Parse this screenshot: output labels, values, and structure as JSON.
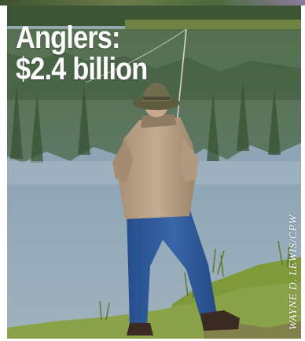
{
  "headline": {
    "line1": "Anglers:",
    "line2": "$2.4 billion"
  },
  "photo_credit": "WAYNE D. LEWIS/CPW",
  "colors": {
    "headline_text": "#ffffff",
    "lake_water": "#8fa7b6",
    "forest_reflection": "#3f5a3c",
    "shore_grass": "#7f9a3a",
    "jacket": "#b8a186",
    "jeans": "#2f5a9c",
    "hat": "#6f6d4c"
  },
  "icons": [
    "fisherman-figure",
    "fishing-rod-icon"
  ]
}
